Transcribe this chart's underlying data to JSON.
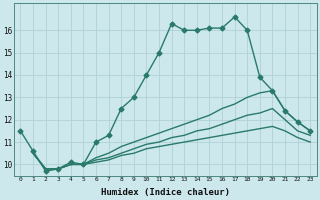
{
  "xlabel": "Humidex (Indice chaleur)",
  "bg_color": "#cce8ec",
  "grid_color": "#b0d0d8",
  "line_color": "#2a7a6a",
  "xlim": [
    -0.5,
    23.5
  ],
  "ylim": [
    9.5,
    17.2
  ],
  "xtick_labels": [
    "0",
    "1",
    "2",
    "3",
    "4",
    "5",
    "6",
    "7",
    "8",
    "9",
    "10",
    "11",
    "12",
    "13",
    "14",
    "15",
    "16",
    "17",
    "18",
    "19",
    "20",
    "21",
    "22",
    "23"
  ],
  "ytick_values": [
    10,
    11,
    12,
    13,
    14,
    15,
    16
  ],
  "line1_x": [
    0,
    1,
    2,
    3,
    4,
    5,
    6,
    7,
    8,
    9,
    10,
    11,
    12,
    13,
    14,
    15,
    16,
    17,
    18,
    19,
    20,
    21,
    22,
    23
  ],
  "line1_y": [
    11.5,
    10.6,
    9.7,
    9.8,
    10.1,
    10.0,
    11.0,
    11.3,
    12.5,
    13.0,
    14.0,
    15.0,
    16.3,
    16.0,
    16.0,
    16.1,
    16.1,
    16.6,
    16.0,
    13.9,
    13.3,
    12.4,
    11.9,
    11.5
  ],
  "line2_x": [
    1,
    2,
    3,
    4,
    5,
    6,
    7,
    8,
    9,
    10,
    11,
    12,
    13,
    14,
    15,
    16,
    17,
    18,
    19,
    20,
    21,
    22,
    23
  ],
  "line2_y": [
    10.5,
    9.8,
    9.8,
    10.0,
    10.0,
    10.3,
    10.5,
    10.8,
    11.0,
    11.2,
    11.4,
    11.6,
    11.8,
    12.0,
    12.2,
    12.5,
    12.7,
    13.0,
    13.2,
    13.3,
    12.4,
    11.9,
    11.5
  ],
  "line3_x": [
    1,
    2,
    3,
    4,
    5,
    6,
    7,
    8,
    9,
    10,
    11,
    12,
    13,
    14,
    15,
    16,
    17,
    18,
    19,
    20,
    21,
    22,
    23
  ],
  "line3_y": [
    10.5,
    9.8,
    9.8,
    10.0,
    10.0,
    10.2,
    10.3,
    10.5,
    10.7,
    10.9,
    11.0,
    11.2,
    11.3,
    11.5,
    11.6,
    11.8,
    12.0,
    12.2,
    12.3,
    12.5,
    12.0,
    11.5,
    11.3
  ],
  "line4_x": [
    1,
    2,
    3,
    4,
    5,
    6,
    7,
    8,
    9,
    10,
    11,
    12,
    13,
    14,
    15,
    16,
    17,
    18,
    19,
    20,
    21,
    22,
    23
  ],
  "line4_y": [
    10.5,
    9.8,
    9.8,
    10.0,
    10.0,
    10.1,
    10.2,
    10.4,
    10.5,
    10.7,
    10.8,
    10.9,
    11.0,
    11.1,
    11.2,
    11.3,
    11.4,
    11.5,
    11.6,
    11.7,
    11.5,
    11.2,
    11.0
  ]
}
